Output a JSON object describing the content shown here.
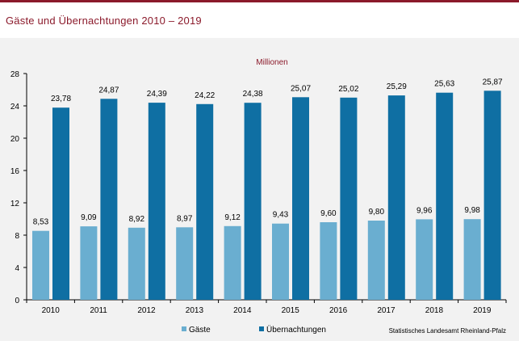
{
  "header": {
    "title": "Gäste und Übernachtungen 2010 – 2019"
  },
  "chart_data": {
    "type": "bar",
    "unit_label": "Millionen",
    "categories": [
      "2010",
      "2011",
      "2012",
      "2013",
      "2014",
      "2015",
      "2016",
      "2017",
      "2018",
      "2019"
    ],
    "series": [
      {
        "name": "Gäste",
        "color": "#6aaed0",
        "values": [
          8.53,
          9.09,
          8.92,
          8.97,
          9.12,
          9.43,
          9.6,
          9.8,
          9.96,
          9.98
        ],
        "labels": [
          "8,53",
          "9,09",
          "8,92",
          "8,97",
          "9,12",
          "9,43",
          "9,60",
          "9,80",
          "9,96",
          "9,98"
        ]
      },
      {
        "name": "Übernachtungen",
        "color": "#0f6fa3",
        "values": [
          23.78,
          24.87,
          24.39,
          24.22,
          24.38,
          25.07,
          25.02,
          25.29,
          25.63,
          25.87
        ],
        "labels": [
          "23,78",
          "24,87",
          "24,39",
          "24,22",
          "24,38",
          "25,07",
          "25,02",
          "25,29",
          "25,63",
          "25,87"
        ]
      }
    ],
    "ylim": [
      0,
      28
    ],
    "yticks": [
      0,
      4,
      8,
      12,
      16,
      20,
      24,
      28
    ],
    "grid": false,
    "legend_position": "bottom"
  },
  "source": "Statistisches Landesamt Rheinland-Pfalz"
}
